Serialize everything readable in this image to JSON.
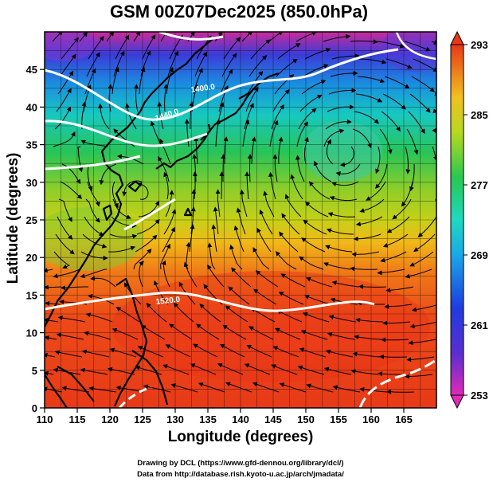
{
  "title": "GSM 00Z07Dec2025 (850.0hPa)",
  "xlabel": "Longitude (degrees)",
  "ylabel": "Latitude  (degrees)",
  "xticks": [
    "110",
    "115",
    "120",
    "125",
    "130",
    "135",
    "140",
    "145",
    "150",
    "155",
    "160",
    "165"
  ],
  "yticks": [
    "0",
    "5",
    "10",
    "15",
    "20",
    "25",
    "30",
    "35",
    "40",
    "45"
  ],
  "colorbar": {
    "ticks": [
      "293",
      "285",
      "277",
      "269",
      "261",
      "253"
    ],
    "range": [
      253,
      293
    ]
  },
  "contour_labels": [
    "1400.0",
    "1440.0",
    "1520.0"
  ],
  "credits": {
    "line1": "Drawing by DCL (https://www.gfd-dennou.org/library/dcl/)",
    "line2": "Data from http://database.rish.kyoto-u.ac.jp/arch/jmadata/"
  },
  "map": {
    "lon_range": [
      110,
      170
    ],
    "lat_range": [
      0,
      50
    ],
    "field": "temperature (K) with streamlines and geopotential height contours"
  }
}
